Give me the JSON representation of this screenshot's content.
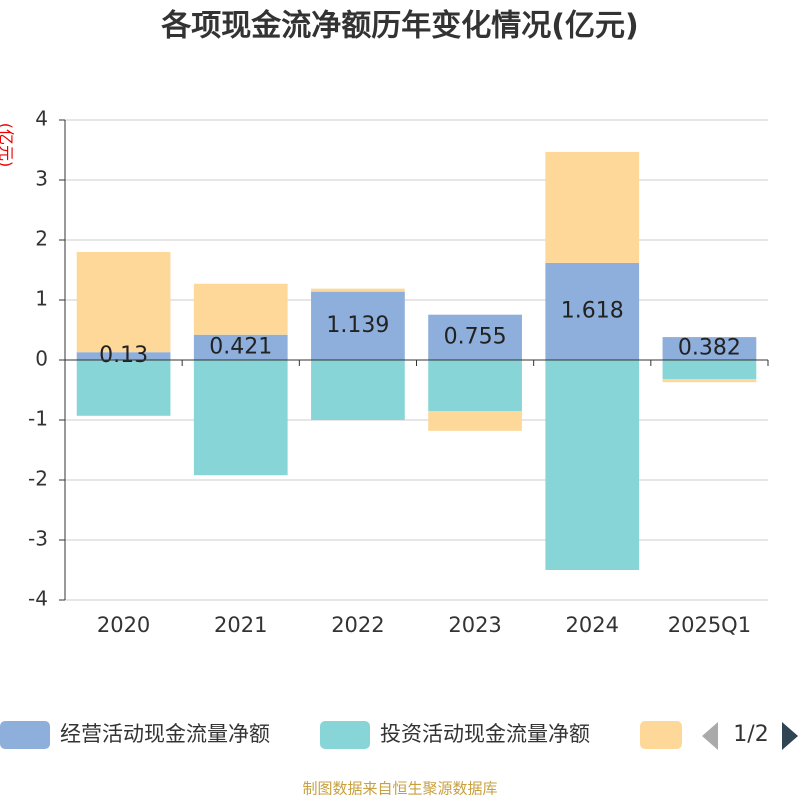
{
  "chart_data": {
    "type": "bar",
    "stacked": true,
    "title": "各项现金流净额历年变化情况(亿元)",
    "y_label": "(亿元)",
    "source": "制图数据来自恒生聚源数据库",
    "pager": "1/2",
    "categories": [
      "2020",
      "2021",
      "2022",
      "2023",
      "2024",
      "2025Q1"
    ],
    "series": [
      {
        "name": "经营活动现金流量净额",
        "color": "#8eaedb",
        "values": [
          0.13,
          0.421,
          1.139,
          0.755,
          1.618,
          0.382
        ],
        "labels": true
      },
      {
        "name": "投资活动现金流量净额",
        "color": "#88d5d8",
        "values": [
          -0.93,
          -1.92,
          -1.0,
          -0.85,
          -3.5,
          -0.32
        ]
      },
      {
        "color": "#fed898",
        "values": [
          1.67,
          0.85,
          0.05,
          -0.33,
          1.85,
          -0.05
        ]
      }
    ],
    "ylim": [
      -4,
      4
    ],
    "yticks": [
      -4,
      -3,
      -2,
      -1,
      0,
      1,
      2,
      3,
      4
    ],
    "grid": true
  }
}
